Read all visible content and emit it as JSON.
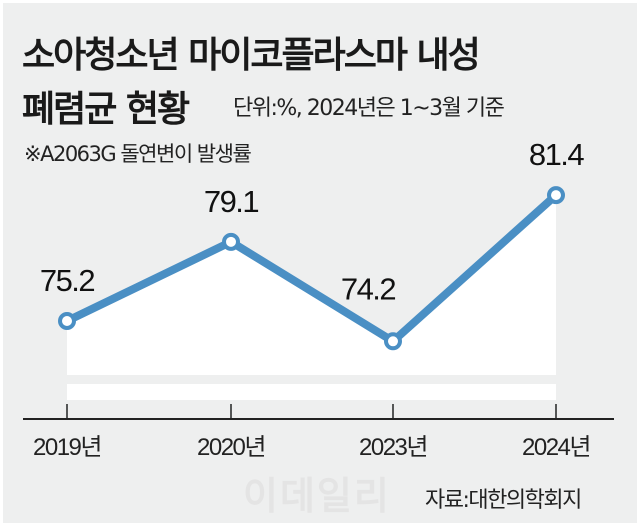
{
  "chart_data": {
    "type": "line",
    "title": "소아청소년 마이코플라스마 내성 폐렴균 현황",
    "title_line1": "소아청소년 마이코플라스마 내성",
    "title_line2": "폐렴균 현황",
    "subtitle": "단위:%, 2024년은 1~3월 기준",
    "note": "※A2063G 돌연변이 발생률",
    "categories": [
      "2019년",
      "2020년",
      "2023년",
      "2024년"
    ],
    "values": [
      75.2,
      79.1,
      74.2,
      81.4
    ],
    "data_labels": [
      "75.2",
      "79.1",
      "74.2",
      "81.4"
    ],
    "xlabel": "",
    "ylabel": "",
    "ylim": [
      71.5,
      82.5
    ],
    "grid": false,
    "source": "자료:대한의학회지",
    "watermark": "이데일리",
    "colors": {
      "line": "#4a8fc4",
      "background": "#eeefef",
      "area": "#ffffff"
    }
  }
}
